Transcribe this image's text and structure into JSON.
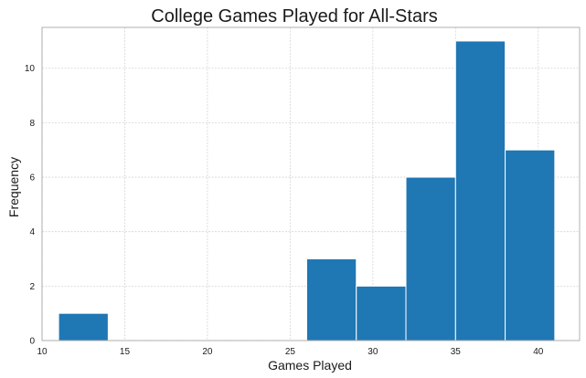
{
  "chart_data": {
    "type": "bar",
    "subtype": "histogram",
    "title": "College Games Played for All-Stars",
    "xlabel": "Games Played",
    "ylabel": "Frequency",
    "xlim": [
      10,
      42.5
    ],
    "ylim": [
      0,
      11.5
    ],
    "xticks": [
      10,
      15,
      20,
      25,
      30,
      35,
      40
    ],
    "yticks": [
      0,
      2,
      4,
      6,
      8,
      10
    ],
    "bin_edges": [
      11,
      14,
      17,
      20,
      23,
      26,
      29,
      32,
      35,
      38,
      41
    ],
    "values": [
      1,
      0,
      0,
      0,
      0,
      3,
      2,
      6,
      11,
      7
    ],
    "grid": true,
    "colors": {
      "bar": "#1f77b4",
      "grid": "#d4d4d4",
      "frame": "#9e9e9e"
    }
  }
}
